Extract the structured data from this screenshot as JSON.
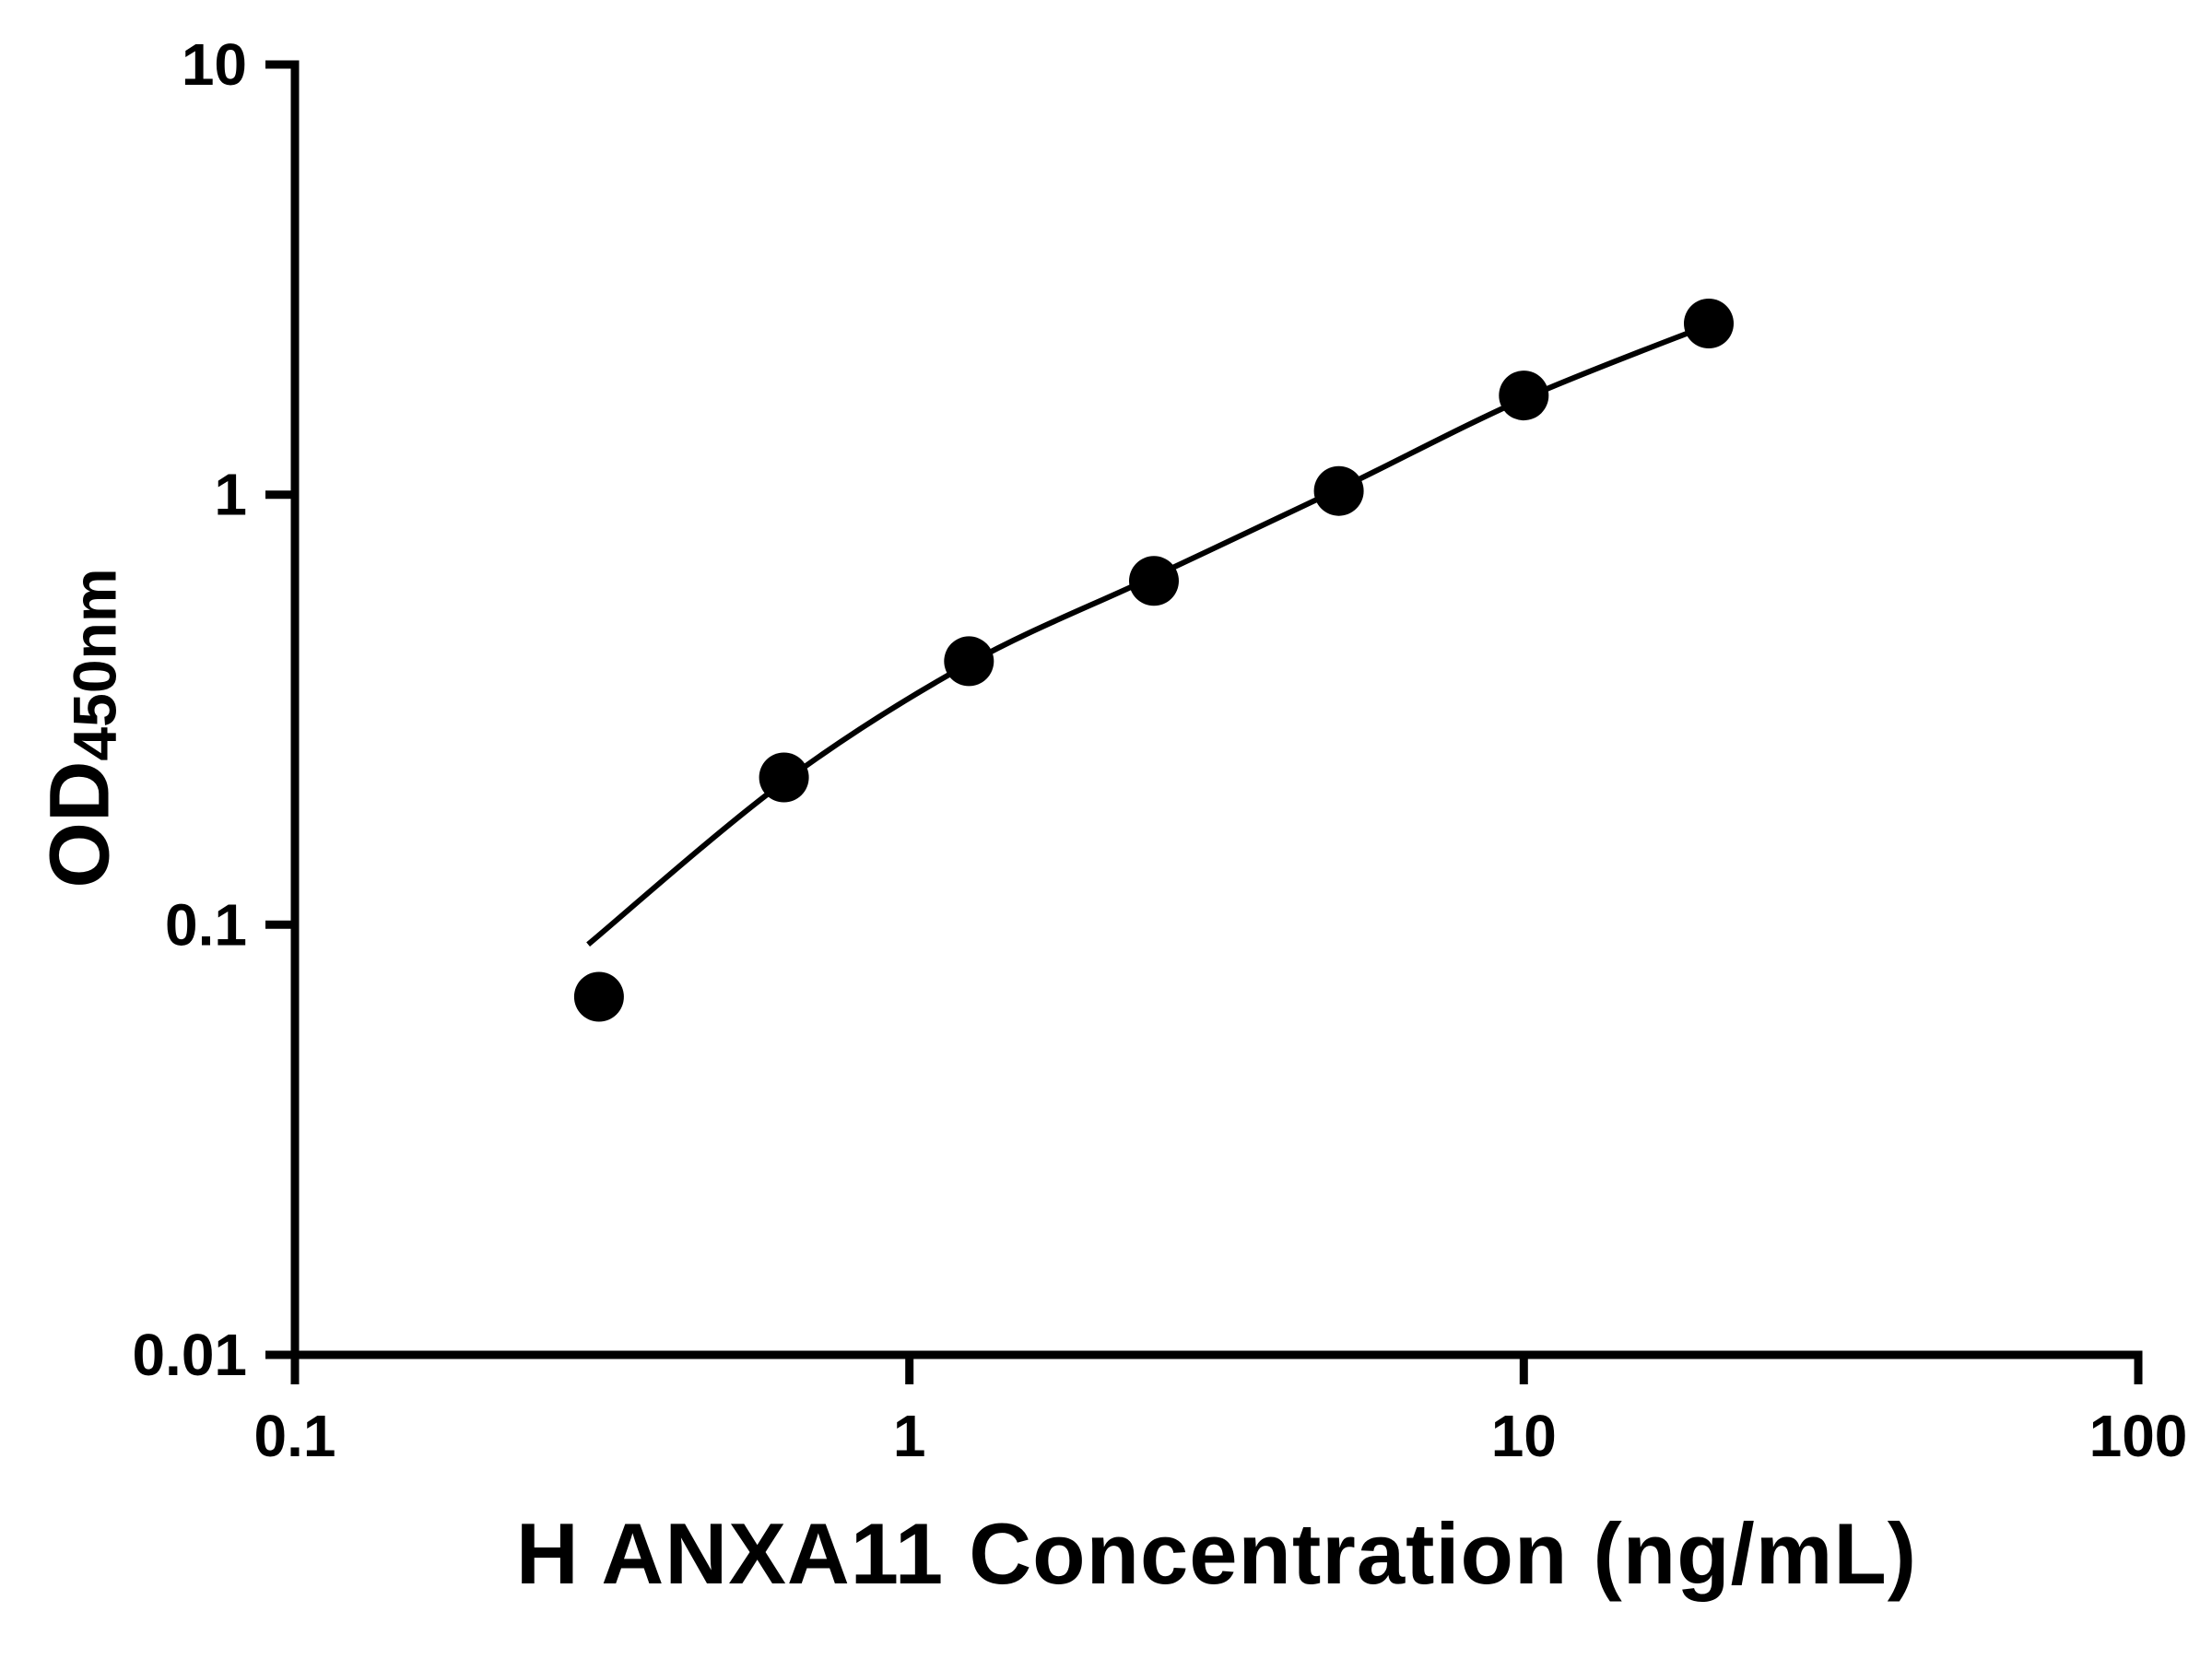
{
  "chart_data": {
    "type": "scatter",
    "title": "",
    "xlabel": "H ANXA11 Concentration (ng/mL)",
    "ylabel_main": "OD",
    "ylabel_sub": "450nm",
    "xscale": "log",
    "yscale": "log",
    "xlim": [
      0.1,
      100
    ],
    "ylim": [
      0.01,
      10
    ],
    "x_ticks": [
      0.1,
      1,
      10,
      100
    ],
    "x_tick_labels": [
      "0.1",
      "1",
      "10",
      "100"
    ],
    "y_ticks": [
      0.01,
      0.1,
      1,
      10
    ],
    "y_tick_labels": [
      "0.01",
      "0.1",
      "1",
      "10"
    ],
    "grid": false,
    "legend": "none",
    "marker_color": "#000000",
    "line_color": "#000000",
    "axis_color": "#000000",
    "background_color": "#ffffff",
    "points": [
      {
        "x": 0.3125,
        "y": 0.068
      },
      {
        "x": 0.625,
        "y": 0.22
      },
      {
        "x": 1.25,
        "y": 0.41
      },
      {
        "x": 2.5,
        "y": 0.63
      },
      {
        "x": 5,
        "y": 1.02
      },
      {
        "x": 10,
        "y": 1.7
      },
      {
        "x": 20,
        "y": 2.5
      }
    ],
    "fit_curve": [
      {
        "x": 0.3,
        "y": 0.09
      },
      {
        "x": 0.625,
        "y": 0.215
      },
      {
        "x": 1.25,
        "y": 0.405
      },
      {
        "x": 2.5,
        "y": 0.645
      },
      {
        "x": 5,
        "y": 1.03
      },
      {
        "x": 10,
        "y": 1.67
      },
      {
        "x": 20,
        "y": 2.48
      }
    ]
  }
}
